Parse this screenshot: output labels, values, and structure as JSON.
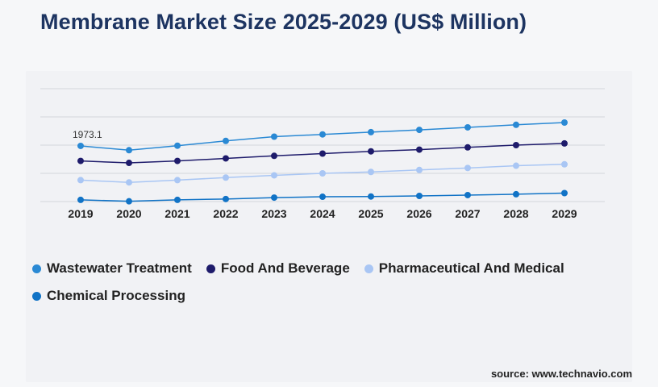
{
  "title": "Membrane Market Size 2025-2029 (US$ Million)",
  "source": "source: www.technavio.com",
  "chart_data": {
    "type": "line",
    "x": [
      "2019",
      "2020",
      "2021",
      "2022",
      "2023",
      "2024",
      "2025",
      "2026",
      "2027",
      "2028",
      "2029"
    ],
    "ylim": [
      0,
      4000
    ],
    "grid": true,
    "legend_position": "bottom-left",
    "annotations": [
      {
        "series": "Wastewater Treatment",
        "x": "2019",
        "text": "1973.1"
      }
    ],
    "series": [
      {
        "name": "Wastewater Treatment",
        "color": "#2a89d4",
        "values": [
          1973.1,
          1820,
          1980,
          2150,
          2300,
          2380,
          2460,
          2540,
          2630,
          2720,
          2800
        ]
      },
      {
        "name": "Food And Beverage",
        "color": "#1e1b6b",
        "values": [
          1440,
          1370,
          1440,
          1530,
          1620,
          1700,
          1780,
          1840,
          1920,
          2000,
          2060
        ]
      },
      {
        "name": "Pharmaceutical And Medical",
        "color": "#a9c6f4",
        "values": [
          760,
          680,
          760,
          850,
          930,
          1000,
          1050,
          1120,
          1190,
          1270,
          1320
        ]
      },
      {
        "name": "Chemical Processing",
        "color": "#1173c6",
        "values": [
          60,
          10,
          60,
          90,
          140,
          170,
          180,
          200,
          230,
          260,
          300
        ]
      }
    ]
  }
}
